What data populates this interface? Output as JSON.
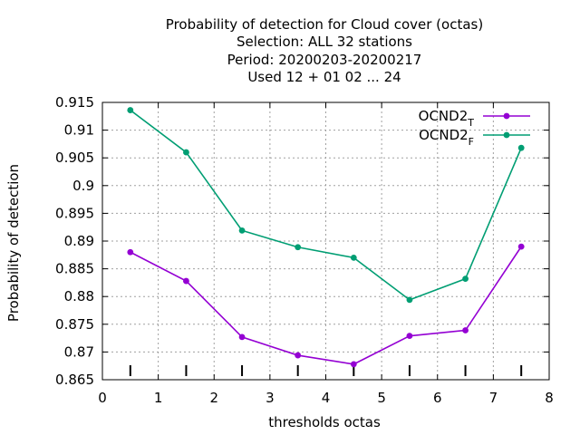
{
  "chart_data": {
    "type": "line",
    "title_lines": [
      "Probability of detection  for Cloud cover (octas)",
      "Selection: ALL     32 stations",
      "Period: 20200203-20200217",
      "Used  12 + 01 02 ... 24"
    ],
    "xlabel": "thresholds octas",
    "ylabel": "Probability of detection",
    "xlim": [
      0,
      8
    ],
    "ylim": [
      0.865,
      0.915
    ],
    "xticks": [
      "0",
      "1",
      "2",
      "3",
      "4",
      "5",
      "6",
      "7",
      "8"
    ],
    "yticks": [
      "0.865",
      "0.87",
      "0.875",
      "0.88",
      "0.885",
      "0.89",
      "0.895",
      "0.9",
      "0.905",
      "0.91",
      "0.915"
    ],
    "grid": true,
    "legend_position": "top-right",
    "x": [
      0.5,
      1.5,
      2.5,
      3.5,
      4.5,
      5.5,
      6.5,
      7.5
    ],
    "series": [
      {
        "name_main": "OCND2",
        "name_sub": "T",
        "color": "#9400d3",
        "values": [
          0.888,
          0.8828,
          0.8727,
          0.8694,
          0.8678,
          0.8729,
          0.8739,
          0.889
        ]
      },
      {
        "name_main": "OCND2",
        "name_sub": "F",
        "color": "#009e73",
        "values": [
          0.9136,
          0.906,
          0.8919,
          0.8889,
          0.887,
          0.8794,
          0.8832,
          0.9068
        ]
      }
    ],
    "sample_markers_x": [
      0.5,
      1.5,
      2.5,
      3.5,
      4.5,
      5.5,
      6.5,
      7.5
    ]
  }
}
